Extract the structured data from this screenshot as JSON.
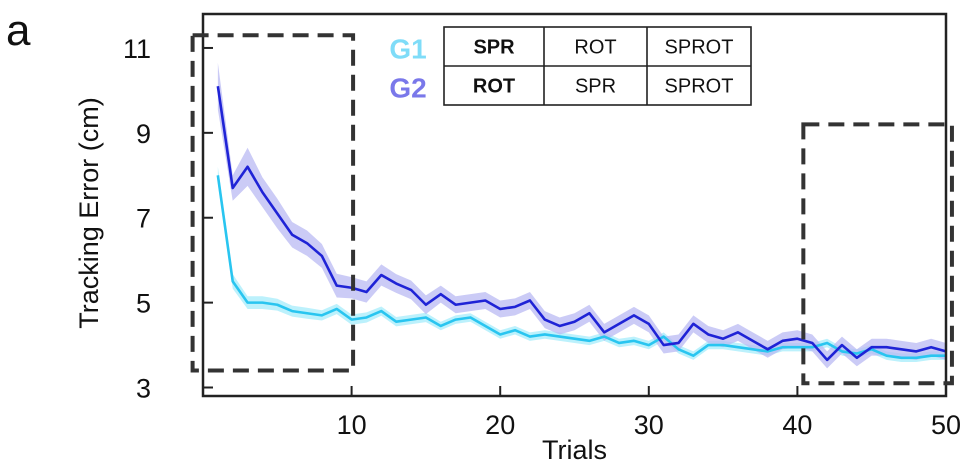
{
  "panel_label": "a",
  "chart_data": {
    "type": "line",
    "title": "",
    "xlabel": "Trials",
    "ylabel": "Tracking Error (cm)",
    "xlim": [
      0,
      50
    ],
    "ylim": [
      2.8,
      11.8
    ],
    "xticks": [
      10,
      20,
      30,
      40,
      50
    ],
    "yticks": [
      3,
      5,
      7,
      9,
      11
    ],
    "grid": false,
    "x": [
      1,
      2,
      3,
      4,
      5,
      6,
      7,
      8,
      9,
      10,
      11,
      12,
      13,
      14,
      15,
      16,
      17,
      18,
      19,
      20,
      21,
      22,
      23,
      24,
      25,
      26,
      27,
      28,
      29,
      30,
      31,
      32,
      33,
      34,
      35,
      36,
      37,
      38,
      39,
      40,
      41,
      42,
      43,
      44,
      45,
      46,
      47,
      48,
      49,
      50
    ],
    "series": [
      {
        "name": "G1",
        "color": "#29c5f0",
        "band_color": "#a6ecfb",
        "values": [
          8.0,
          5.5,
          5.0,
          5.0,
          4.95,
          4.8,
          4.75,
          4.7,
          4.85,
          4.6,
          4.65,
          4.8,
          4.55,
          4.6,
          4.65,
          4.45,
          4.6,
          4.65,
          4.45,
          4.25,
          4.35,
          4.2,
          4.25,
          4.2,
          4.15,
          4.1,
          4.2,
          4.05,
          4.1,
          4.0,
          4.2,
          3.9,
          3.75,
          4.0,
          4.0,
          3.95,
          3.9,
          3.85,
          3.95,
          3.95,
          3.95,
          4.05,
          3.85,
          3.8,
          3.9,
          3.75,
          3.7,
          3.7,
          3.75,
          3.75
        ],
        "band": [
          0.2,
          0.17,
          0.15,
          0.15,
          0.14,
          0.13,
          0.13,
          0.12,
          0.12,
          0.12,
          0.12,
          0.11,
          0.11,
          0.11,
          0.11,
          0.1,
          0.1,
          0.1,
          0.1,
          0.1,
          0.1,
          0.1,
          0.1,
          0.1,
          0.1,
          0.1,
          0.1,
          0.1,
          0.1,
          0.1,
          0.1,
          0.1,
          0.1,
          0.1,
          0.1,
          0.1,
          0.1,
          0.1,
          0.1,
          0.1,
          0.1,
          0.1,
          0.1,
          0.1,
          0.1,
          0.1,
          0.1,
          0.1,
          0.1,
          0.1
        ]
      },
      {
        "name": "G2",
        "color": "#1f23d6",
        "band_color": "#b9b9f3",
        "values": [
          10.1,
          7.7,
          8.2,
          7.6,
          7.1,
          6.6,
          6.4,
          6.1,
          5.4,
          5.35,
          5.25,
          5.65,
          5.45,
          5.3,
          4.95,
          5.2,
          4.95,
          5.0,
          5.05,
          4.85,
          4.9,
          5.05,
          4.6,
          4.45,
          4.55,
          4.75,
          4.3,
          4.5,
          4.7,
          4.5,
          4.0,
          4.05,
          4.5,
          4.25,
          4.15,
          4.3,
          4.1,
          3.9,
          4.1,
          4.15,
          4.05,
          3.65,
          4.0,
          3.7,
          3.95,
          3.95,
          3.9,
          3.85,
          3.95,
          3.85
        ],
        "band": [
          0.55,
          0.3,
          0.45,
          0.35,
          0.35,
          0.3,
          0.3,
          0.28,
          0.28,
          0.25,
          0.25,
          0.25,
          0.22,
          0.22,
          0.22,
          0.2,
          0.2,
          0.2,
          0.2,
          0.2,
          0.2,
          0.2,
          0.2,
          0.2,
          0.2,
          0.2,
          0.2,
          0.2,
          0.2,
          0.2,
          0.2,
          0.2,
          0.2,
          0.2,
          0.2,
          0.2,
          0.2,
          0.2,
          0.2,
          0.2,
          0.2,
          0.2,
          0.2,
          0.2,
          0.2,
          0.2,
          0.2,
          0.2,
          0.2,
          0.2
        ]
      }
    ],
    "highlight_boxes": [
      {
        "x0": -0.7,
        "x1": 10.1,
        "y0": 3.4,
        "y1": 11.3
      },
      {
        "x0": 40.4,
        "x1": 50.4,
        "y0": 3.1,
        "y1": 9.2
      }
    ],
    "legend_table": {
      "groups": [
        {
          "label": "G1",
          "color": "#7fdcf8",
          "cells": [
            "SPR",
            "ROT",
            "SPROT"
          ]
        },
        {
          "label": "G2",
          "color": "#7a78ea",
          "cells": [
            "ROT",
            "SPR",
            "SPROT"
          ]
        }
      ]
    }
  }
}
